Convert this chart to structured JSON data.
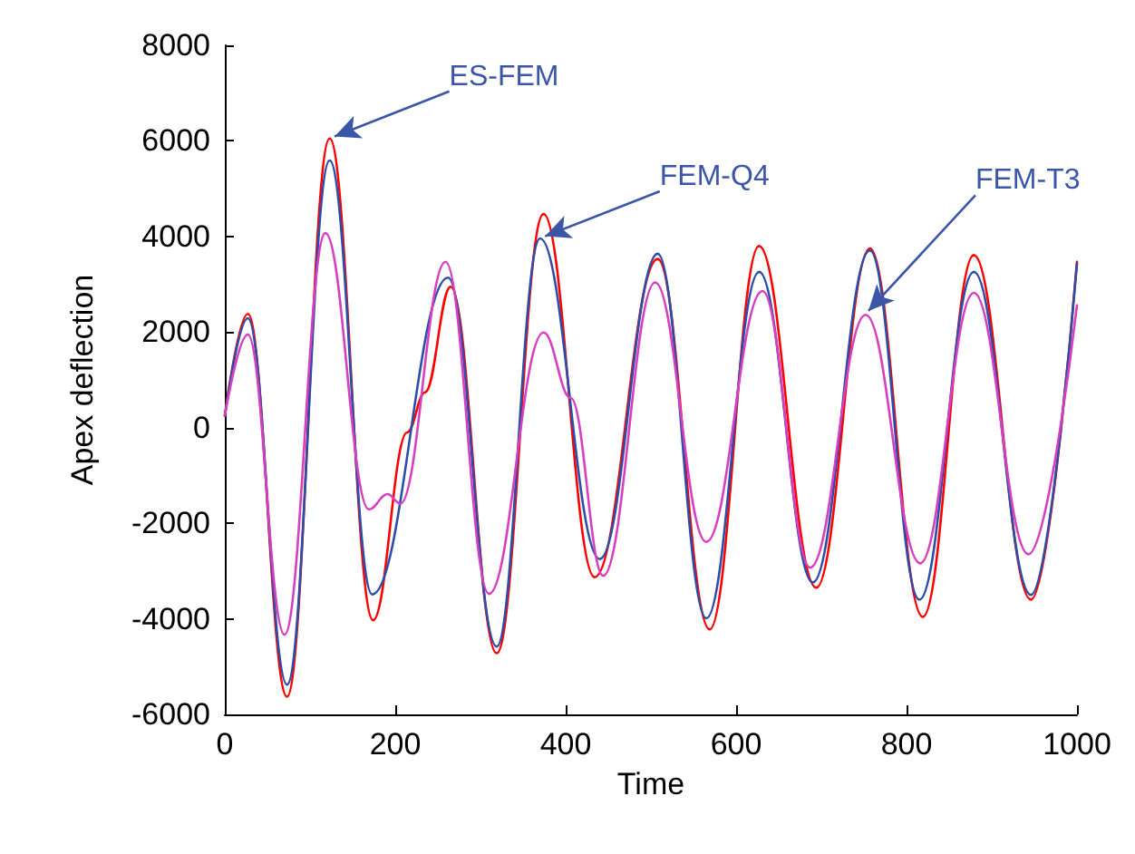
{
  "chart_data": {
    "type": "line",
    "xlabel": "Time",
    "ylabel": "Apex deflection",
    "xlim": [
      0,
      1000
    ],
    "xticks": [
      0,
      200,
      400,
      600,
      800,
      1000
    ],
    "ylim": [
      -6000,
      8000
    ],
    "yticks": [
      -6000,
      -4000,
      -2000,
      0,
      2000,
      4000,
      6000,
      8000
    ],
    "grid": false,
    "marker": "none",
    "line_style": "solid",
    "series": [
      {
        "color": "#ff0000",
        "x": [
          0,
          27,
          73,
          123,
          174,
          214,
          235,
          265,
          319,
          374,
          434,
          508,
          569,
          627,
          694,
          757,
          819,
          879,
          946,
          1000
        ],
        "values": [
          250,
          2380,
          -5630,
          6050,
          -4030,
          -100,
          740,
          2950,
          -4720,
          4470,
          -3130,
          3530,
          -4220,
          3800,
          -3350,
          3750,
          -3960,
          3610,
          -3600,
          3470
        ]
      },
      {
        "color": "#2b4ea8",
        "x": [
          0,
          27,
          73,
          123,
          173,
          262,
          319,
          370,
          440,
          508,
          565,
          627,
          690,
          757,
          815,
          879,
          946,
          1000
        ],
        "values": [
          250,
          2290,
          -5380,
          5590,
          -3490,
          3140,
          -4580,
          3960,
          -2750,
          3640,
          -3990,
          3260,
          -3240,
          3710,
          -3600,
          3260,
          -3500,
          3430
        ]
      },
      {
        "color": "#d63fbf",
        "x": [
          0,
          27,
          70,
          118,
          169,
          191,
          206,
          259,
          310,
          374,
          406,
          444,
          505,
          565,
          631,
          687,
          752,
          816,
          879,
          943,
          1000
        ],
        "values": [
          250,
          1950,
          -4330,
          4070,
          -1710,
          -1390,
          -1590,
          3470,
          -3480,
          1990,
          620,
          -3100,
          3040,
          -2390,
          2860,
          -2930,
          2360,
          -2840,
          2820,
          -2650,
          2560
        ]
      }
    ],
    "annotations": [
      {
        "text": "ES-FEM",
        "x": 123,
        "y": 6050
      },
      {
        "text": "FEM-Q4",
        "x": 370,
        "y": 3960
      },
      {
        "text": "FEM-T3",
        "x": 751,
        "y": 2360
      }
    ]
  }
}
